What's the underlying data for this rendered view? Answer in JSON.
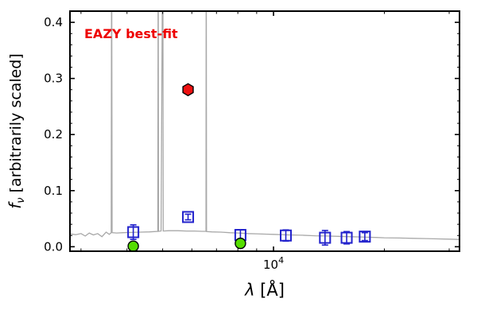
{
  "figure": {
    "background": "#ffffff"
  },
  "chart_data": {
    "type": "line+scatter",
    "title": "",
    "annotation": {
      "text": "EAZY best-fit",
      "color": "#ee0000"
    },
    "xlabel": {
      "symbol": "λ",
      "rest": " [Å]"
    },
    "ylabel": {
      "symbol": "f",
      "subscript": "ν",
      "rest": " [arbitrarily scaled]"
    },
    "xscale": "log",
    "xlim": [
      2800,
      32000
    ],
    "ylim": [
      -0.008,
      0.42
    ],
    "yticks": [
      0,
      0.1,
      0.2,
      0.3,
      0.4
    ],
    "ytick_labels": [
      "0.0",
      "0.1",
      "0.2",
      "0.3",
      "0.4"
    ],
    "yminor_step": 0.02,
    "xtick_major": {
      "value": 10000,
      "label_base": "10",
      "label_exp": "4"
    },
    "xticks_minor": [
      3000,
      4000,
      5000,
      6000,
      7000,
      8000,
      9000,
      20000,
      30000
    ],
    "grid": false,
    "legend": "none",
    "series": [
      {
        "name": "eazy-model-spectrum",
        "kind": "line",
        "color": "#a8a8a8",
        "linewidth": 1.3,
        "points": [
          [
            2800,
            0.023
          ],
          [
            2900,
            0.0215
          ],
          [
            3000,
            0.0235
          ],
          [
            3080,
            0.019
          ],
          [
            3160,
            0.0245
          ],
          [
            3240,
            0.021
          ],
          [
            3330,
            0.0235
          ],
          [
            3420,
            0.018
          ],
          [
            3510,
            0.026
          ],
          [
            3580,
            0.022
          ],
          [
            3625,
            0.025
          ],
          [
            3633,
            0.6
          ],
          [
            3645,
            0.025
          ],
          [
            3750,
            0.0245
          ],
          [
            3900,
            0.025
          ],
          [
            4100,
            0.0255
          ],
          [
            4350,
            0.026
          ],
          [
            4600,
            0.0265
          ],
          [
            4750,
            0.027
          ],
          [
            4850,
            0.0275
          ],
          [
            4861,
            0.6
          ],
          [
            4872,
            0.0275
          ],
          [
            4950,
            0.028
          ],
          [
            5005,
            0.6
          ],
          [
            5018,
            0.028
          ],
          [
            5200,
            0.0285
          ],
          [
            5500,
            0.0285
          ],
          [
            5800,
            0.028
          ],
          [
            6100,
            0.028
          ],
          [
            6400,
            0.0275
          ],
          [
            6555,
            0.0275
          ],
          [
            6565,
            0.6
          ],
          [
            6578,
            0.027
          ],
          [
            6800,
            0.0265
          ],
          [
            7200,
            0.026
          ],
          [
            7600,
            0.025
          ],
          [
            8000,
            0.0245
          ],
          [
            8500,
            0.0235
          ],
          [
            9000,
            0.023
          ],
          [
            9500,
            0.0225
          ],
          [
            10000,
            0.022
          ],
          [
            11000,
            0.021
          ],
          [
            12000,
            0.0205
          ],
          [
            13000,
            0.0195
          ],
          [
            14000,
            0.019
          ],
          [
            15000,
            0.0185
          ],
          [
            16000,
            0.018
          ],
          [
            17000,
            0.0175
          ],
          [
            18000,
            0.017
          ],
          [
            19000,
            0.0165
          ],
          [
            20000,
            0.016
          ],
          [
            22000,
            0.0155
          ],
          [
            24000,
            0.015
          ],
          [
            26000,
            0.0145
          ],
          [
            28000,
            0.014
          ],
          [
            30000,
            0.0135
          ],
          [
            32000,
            0.013
          ]
        ]
      },
      {
        "name": "model-photometry",
        "kind": "scatter",
        "marker": "square-open",
        "color": "#2222cc",
        "size": 13,
        "points": [
          [
            4160,
            0.026
          ],
          [
            5860,
            0.053
          ],
          [
            8130,
            0.021
          ],
          [
            10800,
            0.02
          ],
          [
            13800,
            0.016
          ],
          [
            15800,
            0.016
          ],
          [
            17700,
            0.018
          ]
        ],
        "yerr": [
          0.013,
          0.005,
          0.009,
          0.01,
          0.013,
          0.011,
          0.007
        ]
      },
      {
        "name": "observed-photometry",
        "kind": "scatter",
        "marker": "circle-filled",
        "color": "#55dd00",
        "edge": "#000000",
        "size": 13,
        "points": [
          [
            4160,
            0.001
          ],
          [
            8130,
            0.006
          ]
        ]
      },
      {
        "name": "highlighted-point",
        "kind": "scatter",
        "marker": "hexagon-filled",
        "color": "#ee1111",
        "edge": "#000000",
        "size": 15,
        "points": [
          [
            5860,
            0.28
          ]
        ]
      }
    ]
  }
}
